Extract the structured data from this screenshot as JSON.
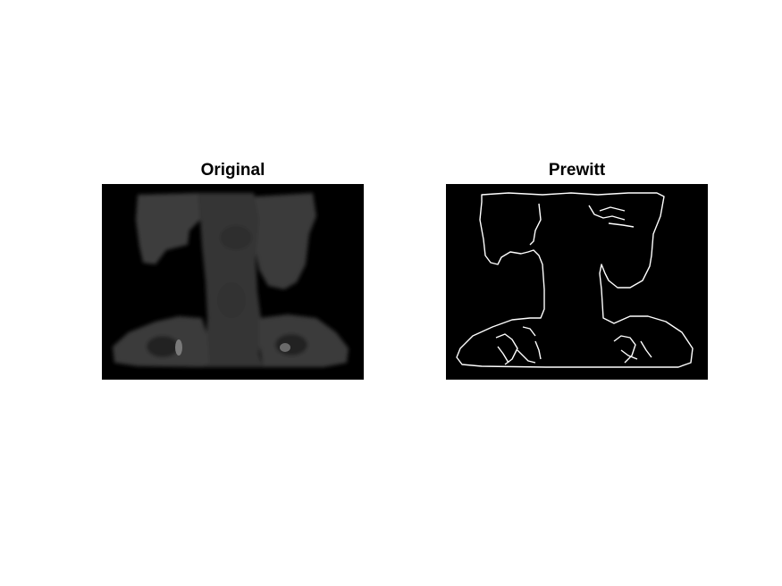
{
  "panels": [
    {
      "title": "Original"
    },
    {
      "title": "Prewitt"
    }
  ],
  "colors": {
    "background": "#ffffff",
    "image_background": "#000000",
    "tissue": "#3a3a3a",
    "bone_highlight": "#7a7a7a",
    "edge": "#ffffff"
  }
}
